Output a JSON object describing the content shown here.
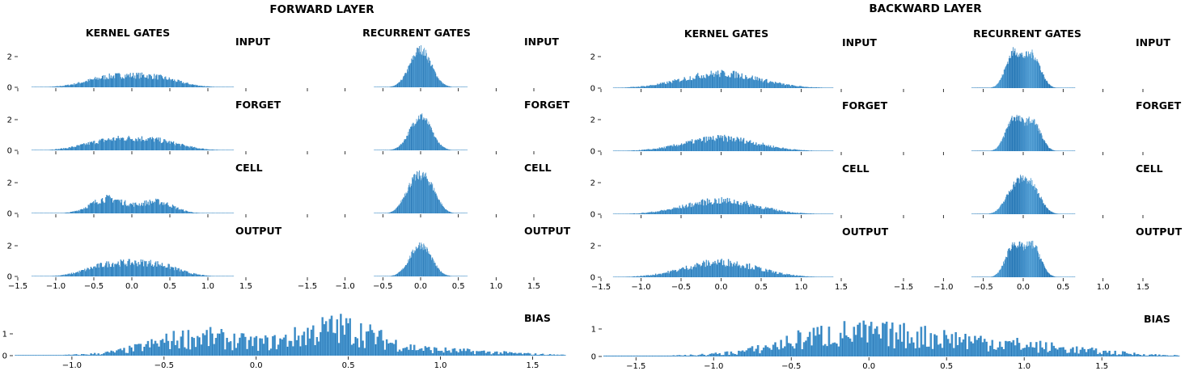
{
  "chart_data": [
    {
      "type": "histogram-grid",
      "title": "FORWARD LAYER",
      "columns": [
        "KERNEL GATES",
        "RECURRENT GATES"
      ],
      "gates": [
        "INPUT",
        "FORGET",
        "CELL",
        "OUTPUT"
      ],
      "ylim": [
        0,
        2.6
      ],
      "yticks": [
        0,
        2
      ],
      "kernel": {
        "xlim": [
          -1.5,
          1.5
        ],
        "xticks": [
          -1.5,
          -1.0,
          -0.5,
          0.0,
          0.5,
          1.0,
          1.5
        ],
        "xtick_labels": [
          "−1.5",
          "−1.0",
          "−0.5",
          "0.0",
          "0.5",
          "1.0",
          "1.5"
        ],
        "support": [
          -1.32,
          1.34
        ],
        "series": {
          "INPUT": {
            "components": [
              {
                "mu": -0.3,
                "sigma": 0.32,
                "amp": 0.6
              },
              {
                "mu": 0.3,
                "sigma": 0.32,
                "amp": 0.6
              }
            ]
          },
          "FORGET": {
            "components": [
              {
                "mu": -0.3,
                "sigma": 0.34,
                "amp": 0.58
              },
              {
                "mu": 0.3,
                "sigma": 0.34,
                "amp": 0.58
              }
            ]
          },
          "CELL": {
            "components": [
              {
                "mu": -0.32,
                "sigma": 0.22,
                "amp": 0.95
              },
              {
                "mu": 0.32,
                "sigma": 0.22,
                "amp": 0.75
              }
            ]
          },
          "OUTPUT": {
            "components": [
              {
                "mu": -0.3,
                "sigma": 0.3,
                "amp": 0.72
              },
              {
                "mu": 0.3,
                "sigma": 0.3,
                "amp": 0.75
              }
            ]
          }
        }
      },
      "recurrent": {
        "xlim": [
          -1.5,
          1.5
        ],
        "xticks": [
          -1.5,
          -1.0,
          -0.5,
          0.0,
          0.5,
          1.0,
          1.5
        ],
        "xtick_labels": [
          "−1.5",
          "−1.0",
          "−0.5",
          "0.0",
          "0.5",
          "1.0",
          "1.5"
        ],
        "support": [
          -0.62,
          0.62
        ],
        "series": {
          "INPUT": {
            "components": [
              {
                "mu": 0.0,
                "sigma": 0.14,
                "amp": 2.45
              }
            ]
          },
          "FORGET": {
            "components": [
              {
                "mu": 0.0,
                "sigma": 0.14,
                "amp": 2.2
              }
            ]
          },
          "CELL": {
            "components": [
              {
                "mu": -0.1,
                "sigma": 0.12,
                "amp": 1.75
              },
              {
                "mu": 0.1,
                "sigma": 0.12,
                "amp": 1.75
              }
            ]
          },
          "OUTPUT": {
            "components": [
              {
                "mu": 0.0,
                "sigma": 0.14,
                "amp": 2.05
              }
            ]
          }
        }
      },
      "bias": {
        "label": "BIAS",
        "xlim": [
          -1.32,
          1.7
        ],
        "xticks": [
          -1.0,
          -0.5,
          0.0,
          0.5,
          1.0,
          1.5
        ],
        "xtick_labels": [
          "−1.0",
          "−0.5",
          "0.0",
          "0.5",
          "1.0",
          "1.5"
        ],
        "ylim": [
          0,
          1.7
        ],
        "yticks": [
          0,
          1
        ],
        "components": [
          {
            "mu": -0.35,
            "sigma": 0.22,
            "amp": 0.55
          },
          {
            "mu": 0.45,
            "sigma": 0.2,
            "amp": 0.95
          },
          {
            "mu": 0.0,
            "sigma": 0.45,
            "amp": 0.35
          },
          {
            "mu": 1.0,
            "sigma": 0.35,
            "amp": 0.2
          }
        ]
      }
    },
    {
      "type": "histogram-grid",
      "title": "BACKWARD LAYER",
      "columns": [
        "KERNEL GATES",
        "RECURRENT GATES"
      ],
      "gates": [
        "INPUT",
        "FORGET",
        "CELL",
        "OUTPUT"
      ],
      "ylim": [
        0,
        2.6
      ],
      "yticks": [
        0,
        2
      ],
      "kernel": {
        "xlim": [
          -1.5,
          1.5
        ],
        "xticks": [
          -1.5,
          -1.0,
          -0.5,
          0.0,
          0.5,
          1.0,
          1.5
        ],
        "xtick_labels": [
          "−1.5",
          "−1.0",
          "−0.5",
          "0.0",
          "0.5",
          "1.0",
          "1.5"
        ],
        "support": [
          -1.35,
          1.4
        ],
        "series": {
          "INPUT": {
            "components": [
              {
                "mu": 0.0,
                "sigma": 0.48,
                "amp": 0.92
              }
            ]
          },
          "FORGET": {
            "components": [
              {
                "mu": 0.0,
                "sigma": 0.45,
                "amp": 0.82
              }
            ]
          },
          "CELL": {
            "components": [
              {
                "mu": 0.0,
                "sigma": 0.45,
                "amp": 0.85
              }
            ]
          },
          "OUTPUT": {
            "components": [
              {
                "mu": 0.0,
                "sigma": 0.45,
                "amp": 0.95
              }
            ]
          }
        }
      },
      "recurrent": {
        "xlim": [
          -1.5,
          1.5
        ],
        "xticks": [
          -1.5,
          -1.0,
          -0.5,
          0.0,
          0.5,
          1.0,
          1.5
        ],
        "xtick_labels": [
          "−1.5",
          "−1.0",
          "−0.5",
          "0.0",
          "0.5",
          "1.0",
          "1.5"
        ],
        "support": [
          -0.65,
          0.65
        ],
        "series": {
          "INPUT": {
            "components": [
              {
                "mu": -0.12,
                "sigma": 0.1,
                "amp": 2.2
              },
              {
                "mu": 0.12,
                "sigma": 0.1,
                "amp": 2.0
              }
            ]
          },
          "FORGET": {
            "components": [
              {
                "mu": -0.12,
                "sigma": 0.1,
                "amp": 2.05
              },
              {
                "mu": 0.12,
                "sigma": 0.1,
                "amp": 1.8
              }
            ]
          },
          "CELL": {
            "components": [
              {
                "mu": -0.1,
                "sigma": 0.12,
                "amp": 1.6
              },
              {
                "mu": 0.1,
                "sigma": 0.12,
                "amp": 1.6
              }
            ]
          },
          "OUTPUT": {
            "components": [
              {
                "mu": -0.12,
                "sigma": 0.1,
                "amp": 2.0
              },
              {
                "mu": 0.12,
                "sigma": 0.1,
                "amp": 1.95
              }
            ]
          }
        }
      },
      "bias": {
        "label": "BIAS",
        "xlim": [
          -1.72,
          2.02
        ],
        "xticks": [
          -1.5,
          -1.0,
          -0.5,
          0.0,
          0.5,
          1.0,
          1.5
        ],
        "xtick_labels": [
          "−1.5",
          "−1.0",
          "−0.5",
          "0.0",
          "0.5",
          "1.0",
          "1.5"
        ],
        "ylim": [
          0,
          1.7
        ],
        "yticks": [
          0,
          1
        ],
        "components": [
          {
            "mu": 0.15,
            "sigma": 0.55,
            "amp": 0.7
          },
          {
            "mu": -0.3,
            "sigma": 0.25,
            "amp": 0.25
          },
          {
            "mu": 1.1,
            "sigma": 0.45,
            "amp": 0.2
          }
        ]
      }
    }
  ],
  "colors": {
    "bar_dark": "#2071b1",
    "bar_light": "#5aa8dd",
    "axis": "#000000",
    "background": "#ffffff"
  }
}
